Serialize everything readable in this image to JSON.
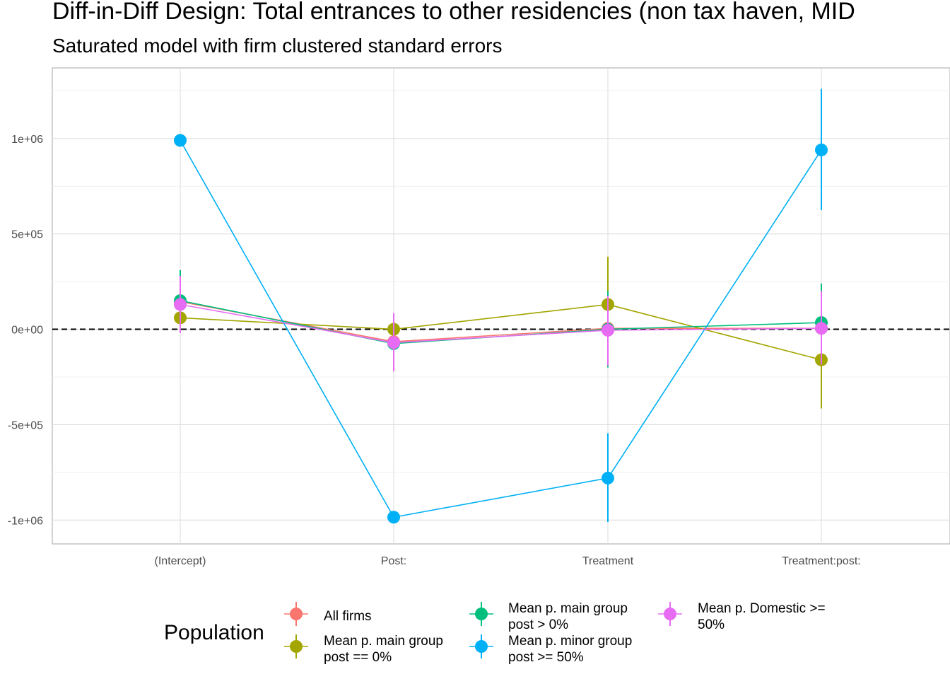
{
  "chart_data": {
    "type": "scatter",
    "title": "Diff-in-Diff Design: Total entrances to other residencies (non tax haven, MID",
    "subtitle": "Saturated model with firm clustered standard errors",
    "xlabel": "",
    "ylabel": "",
    "categories": [
      "(Intercept)",
      "Post:",
      "Treatment",
      "Treatment:post:"
    ],
    "y_ticks": [
      -1000000,
      -500000,
      0,
      500000,
      1000000
    ],
    "y_tick_labels": [
      "-1e+06",
      "-5e+05",
      "0e+00",
      "5e+05",
      "1e+06"
    ],
    "ylim": [
      -1125000,
      1370000
    ],
    "reference_line": 0,
    "grid": true,
    "legend": {
      "title": "Population",
      "position": "bottom"
    },
    "series": [
      {
        "name": "All firms",
        "color": "#F8766D",
        "values": [
          145000,
          -65000,
          5000,
          5000
        ],
        "ci_low": [
          20000,
          -190000,
          -140000,
          -110000
        ],
        "ci_high": [
          270000,
          60000,
          150000,
          120000
        ]
      },
      {
        "name": "Mean p. main group post == 0%",
        "color": "#A3A500",
        "values": [
          60000,
          0,
          130000,
          -160000
        ],
        "ci_low": [
          -10000,
          -20000,
          -120000,
          -415000
        ],
        "ci_high": [
          130000,
          20000,
          380000,
          95000
        ]
      },
      {
        "name": "Mean p. main group post > 0%",
        "color": "#00BF7D",
        "values": [
          150000,
          -75000,
          0,
          35000
        ],
        "ci_low": [
          -5000,
          -220000,
          -200000,
          -170000
        ],
        "ci_high": [
          310000,
          70000,
          200000,
          240000
        ]
      },
      {
        "name": "Mean p. minor group post >= 50%",
        "color": "#00B0F6",
        "values": [
          990000,
          -985000,
          -780000,
          940000
        ],
        "ci_low": [
          990000,
          -985000,
          -1010000,
          625000
        ],
        "ci_high": [
          990000,
          -985000,
          -545000,
          1260000
        ]
      },
      {
        "name": "Mean p. Domestic >= 50%",
        "color": "#E76BF3",
        "values": [
          130000,
          -70000,
          -5000,
          5000
        ],
        "ci_low": [
          -20000,
          -220000,
          -190000,
          -185000
        ],
        "ci_high": [
          280000,
          85000,
          175000,
          200000
        ]
      }
    ]
  },
  "legend_items": [
    {
      "line1": "All firms",
      "line2": ""
    },
    {
      "line1": "Mean p. main group",
      "line2": "post == 0%"
    },
    {
      "line1": "Mean p. main group",
      "line2": "post > 0%"
    },
    {
      "line1": "Mean p. minor group",
      "line2": "post >= 50%"
    },
    {
      "line1": "Mean p. Domestic >=",
      "line2": "50%"
    }
  ]
}
